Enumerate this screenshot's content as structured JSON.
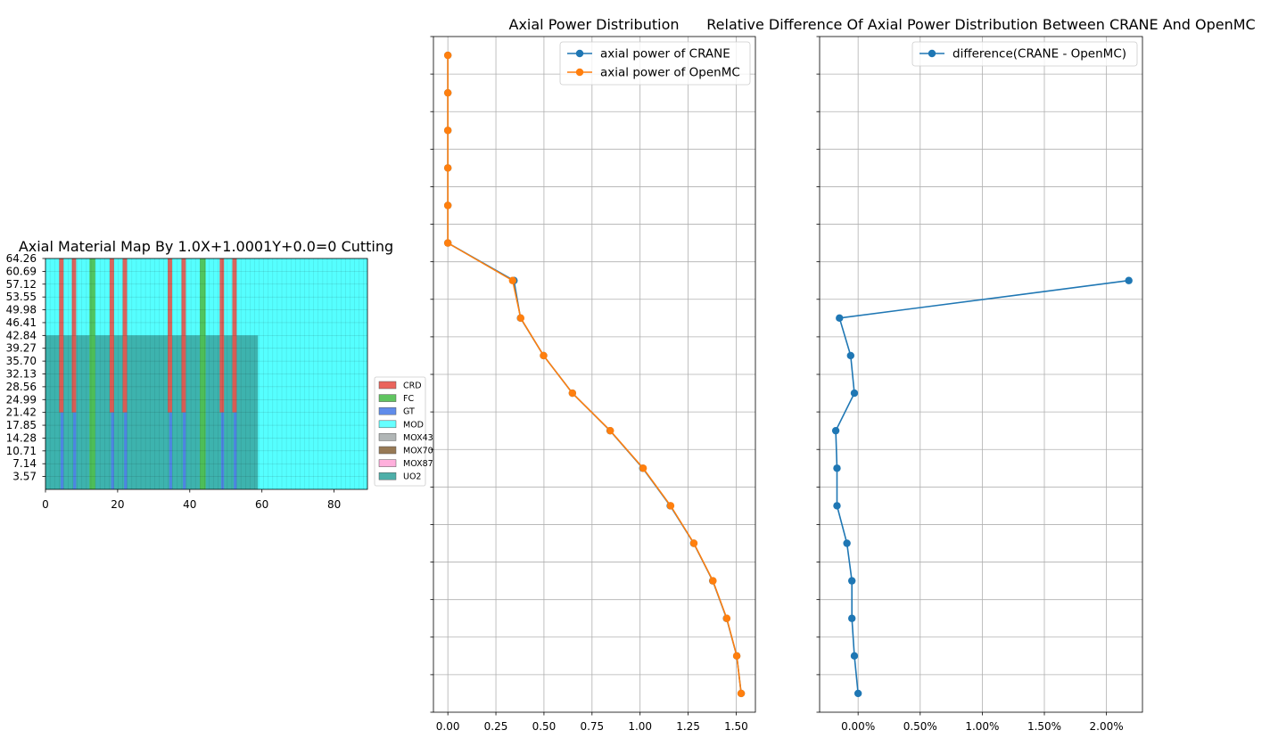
{
  "colors": {
    "crane": "#1f77b4",
    "openmc": "#ff7f0e",
    "grid": "#b0b0b0",
    "materials": {
      "CRD": "#e8534a",
      "FC": "#4fbf4f",
      "GT": "#4f7fe8",
      "MOD": "#55ffff",
      "MOX43": "#a9aeae",
      "MOX70": "#8c6a43",
      "MOX87": "#ffa6d8",
      "UO2": "#3aa6a0"
    }
  },
  "chart_data": [
    {
      "type": "heatmap",
      "title": "Axial Material Map By 1.0X+1.0001Y+0.0=0 Cutting",
      "xlim": [
        0,
        89.25
      ],
      "ylim": [
        0,
        64.26
      ],
      "x_ticks": [
        "0",
        "20",
        "40",
        "60",
        "80"
      ],
      "y_ticks": [
        "64.26",
        "60.69",
        "57.12",
        "53.55",
        "49.98",
        "46.41",
        "42.84",
        "39.27",
        "35.70",
        "32.13",
        "28.56",
        "24.99",
        "21.42",
        "17.85",
        "14.28",
        "10.71",
        "7.14",
        "3.57"
      ],
      "legend": [
        "CRD",
        "FC",
        "GT",
        "MOD",
        "MOX43",
        "MOX70",
        "MOX87",
        "UO2"
      ],
      "legend_position": "right",
      "fuel_region": {
        "x_max": 58.9,
        "y_max": 42.84,
        "material": "UO2"
      },
      "stripes": [
        {
          "x": [
            3.8,
            5.0
          ],
          "y": [
            21.42,
            64.26
          ],
          "material": "CRD"
        },
        {
          "x": [
            7.3,
            8.5
          ],
          "y": [
            21.42,
            64.26
          ],
          "material": "CRD"
        },
        {
          "x": [
            17.8,
            19.0
          ],
          "y": [
            21.42,
            64.26
          ],
          "material": "CRD"
        },
        {
          "x": [
            21.4,
            22.6
          ],
          "y": [
            21.42,
            64.26
          ],
          "material": "CRD"
        },
        {
          "x": [
            33.9,
            35.1
          ],
          "y": [
            21.42,
            64.26
          ],
          "material": "CRD"
        },
        {
          "x": [
            37.7,
            38.9
          ],
          "y": [
            21.42,
            64.26
          ],
          "material": "CRD"
        },
        {
          "x": [
            48.3,
            49.5
          ],
          "y": [
            21.42,
            64.26
          ],
          "material": "CRD"
        },
        {
          "x": [
            51.8,
            53.0
          ],
          "y": [
            21.42,
            64.26
          ],
          "material": "CRD"
        },
        {
          "x": [
            4.2,
            5.0
          ],
          "y": [
            0,
            21.42
          ],
          "material": "GT"
        },
        {
          "x": [
            7.7,
            8.5
          ],
          "y": [
            0,
            21.42
          ],
          "material": "GT"
        },
        {
          "x": [
            18.2,
            19.0
          ],
          "y": [
            0,
            21.42
          ],
          "material": "GT"
        },
        {
          "x": [
            21.8,
            22.6
          ],
          "y": [
            0,
            21.42
          ],
          "material": "GT"
        },
        {
          "x": [
            34.3,
            35.1
          ],
          "y": [
            0,
            21.42
          ],
          "material": "GT"
        },
        {
          "x": [
            38.1,
            38.9
          ],
          "y": [
            0,
            21.42
          ],
          "material": "GT"
        },
        {
          "x": [
            48.7,
            49.5
          ],
          "y": [
            0,
            21.42
          ],
          "material": "GT"
        },
        {
          "x": [
            52.2,
            53.0
          ],
          "y": [
            0,
            21.42
          ],
          "material": "GT"
        },
        {
          "x": [
            12.2,
            13.8
          ],
          "y": [
            0,
            64.26
          ],
          "material": "FC"
        },
        {
          "x": [
            42.8,
            44.4
          ],
          "y": [
            0,
            64.26
          ],
          "material": "FC"
        }
      ]
    },
    {
      "type": "line",
      "title": "Axial Power Distribution",
      "xlim": [
        -0.075,
        1.6
      ],
      "ylim": [
        0,
        18
      ],
      "grid": true,
      "x_ticks": [
        "0.00",
        "0.25",
        "0.50",
        "0.75",
        "1.00",
        "1.25",
        "1.50"
      ],
      "legend_position": "top-right",
      "series": [
        {
          "name": "axial power of CRANE",
          "x": [
            1.526,
            1.503,
            1.45,
            1.378,
            1.279,
            1.157,
            1.014,
            0.844,
            0.648,
            0.498,
            0.378,
            0.344,
            0.0,
            0.0,
            0.0,
            0.0,
            0.0,
            0.0
          ],
          "y": [
            0.5,
            1.5,
            2.5,
            3.5,
            4.5,
            5.5,
            6.5,
            7.5,
            8.5,
            9.5,
            10.5,
            11.5,
            12.5,
            13.5,
            14.5,
            15.5,
            16.5,
            17.5
          ]
        },
        {
          "name": "axial power of OpenMC",
          "x": [
            1.526,
            1.503,
            1.451,
            1.379,
            1.28,
            1.159,
            1.016,
            0.845,
            0.648,
            0.498,
            0.379,
            0.337,
            0.0,
            0.0,
            0.0,
            0.0,
            0.0,
            0.0
          ],
          "y": [
            0.5,
            1.5,
            2.5,
            3.5,
            4.5,
            5.5,
            6.5,
            7.5,
            8.5,
            9.5,
            10.5,
            11.5,
            12.5,
            13.5,
            14.5,
            15.5,
            16.5,
            17.5
          ]
        }
      ]
    },
    {
      "type": "line",
      "title": "Relative Difference Of Axial Power Distribution Between CRANE And OpenMC",
      "xlim": [
        -0.31,
        2.29
      ],
      "ylim": [
        0,
        18
      ],
      "grid": true,
      "x_ticks": [
        "0.00%",
        "0.50%",
        "1.00%",
        "1.50%",
        "2.00%"
      ],
      "x_tick_values": [
        0,
        0.5,
        1.0,
        1.5,
        2.0
      ],
      "legend_position": "top-right",
      "series": [
        {
          "name": "difference(CRANE - OpenMC)",
          "x": [
            0.0,
            -0.03,
            -0.05,
            -0.05,
            -0.09,
            -0.17,
            -0.17,
            -0.18,
            -0.03,
            -0.06,
            -0.15,
            2.18
          ],
          "y": [
            0.5,
            1.5,
            2.5,
            3.5,
            4.5,
            5.5,
            6.5,
            7.5,
            8.5,
            9.5,
            10.5,
            11.5
          ]
        }
      ]
    }
  ]
}
